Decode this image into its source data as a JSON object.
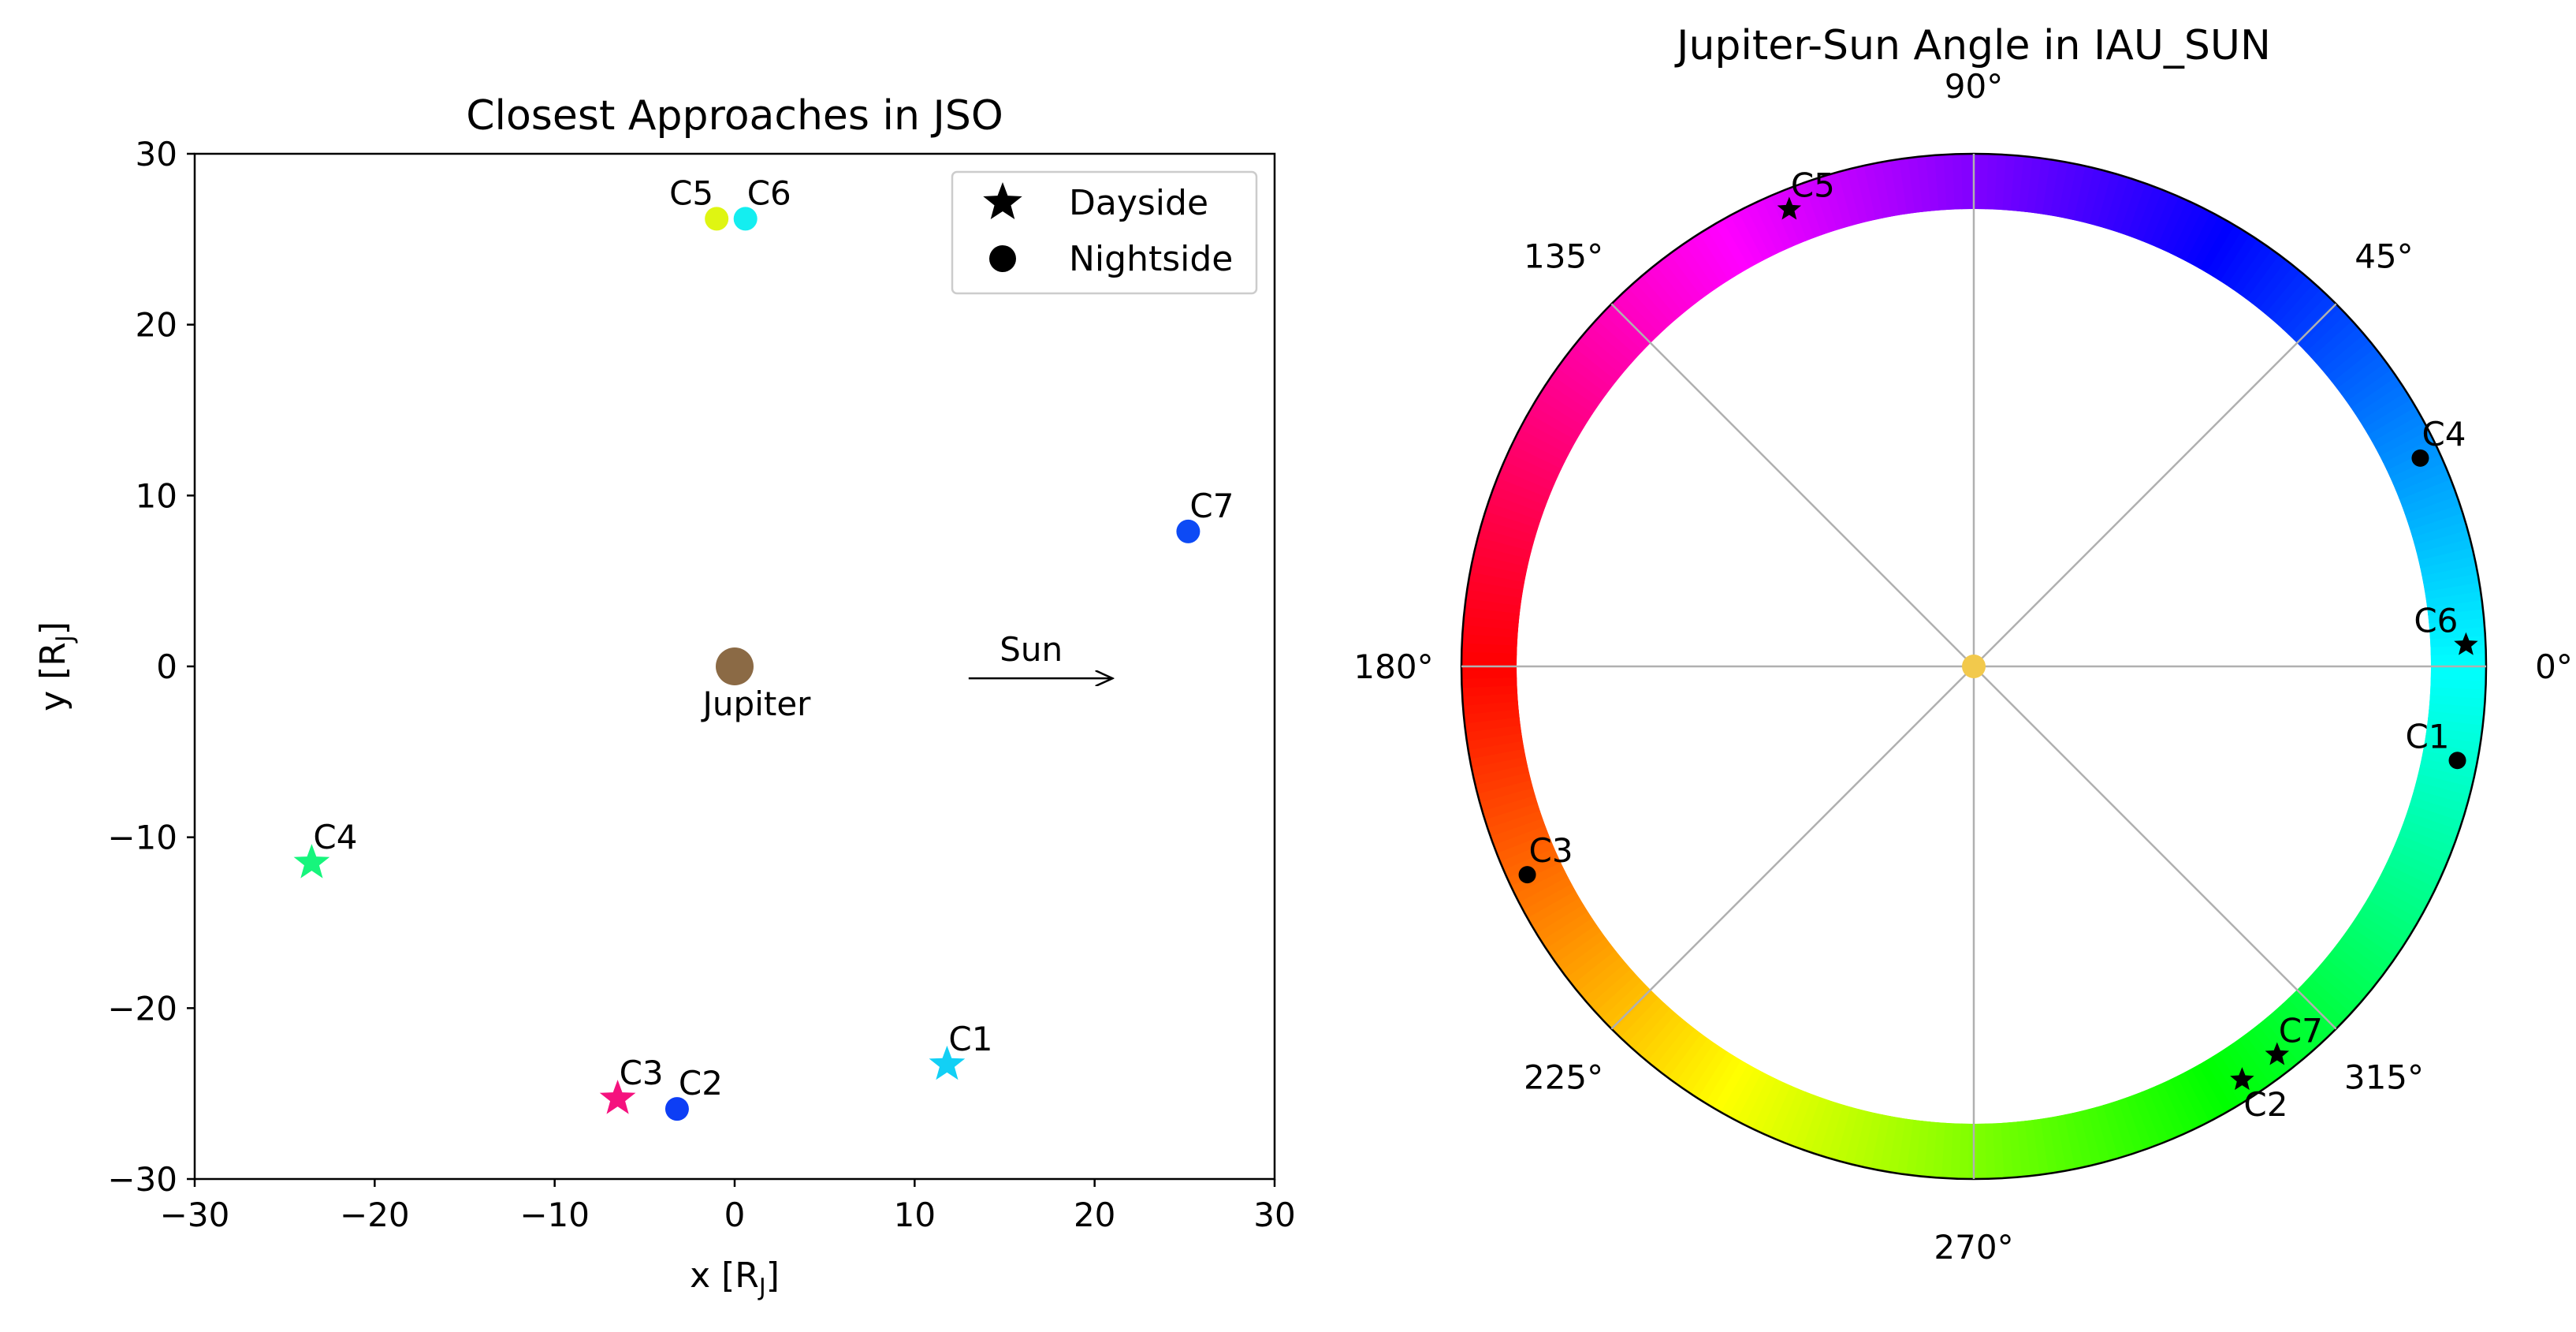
{
  "chart_data": [
    {
      "type": "scatter",
      "title": "Closest Approaches in JSO",
      "xlabel": "x [R",
      "xlabel_sub": "J",
      "xlabel_end": "]",
      "ylabel": "y [R",
      "ylabel_sub": "J",
      "ylabel_end": "]",
      "xlim": [
        -30,
        30
      ],
      "ylim": [
        -30,
        30
      ],
      "xticks": [
        -30,
        -20,
        -10,
        0,
        10,
        20,
        30
      ],
      "yticks": [
        -30,
        -20,
        -10,
        0,
        10,
        20,
        30
      ],
      "grid": false,
      "legend": {
        "placement": "top-right",
        "entries": [
          {
            "label": "Dayside",
            "marker": "star"
          },
          {
            "label": "Nightside",
            "marker": "circle"
          }
        ]
      },
      "planet": {
        "label": "Jupiter",
        "x": 0,
        "y": 0,
        "color": "#8b6a45"
      },
      "sun_annotation": {
        "label": "Sun",
        "x_start": 13,
        "x_end": 21,
        "y": -0.7
      },
      "points": [
        {
          "label": "C1",
          "x": 11.8,
          "y": -23.3,
          "marker": "star",
          "color": "#12d0f5"
        },
        {
          "label": "C2",
          "x": -3.2,
          "y": -25.9,
          "marker": "circle",
          "color": "#0d3ef5"
        },
        {
          "label": "C3",
          "x": -6.5,
          "y": -25.3,
          "marker": "star",
          "color": "#f5127e"
        },
        {
          "label": "C4",
          "x": -23.5,
          "y": -11.5,
          "marker": "star",
          "color": "#16f57c"
        },
        {
          "label": "C5",
          "x": -1.0,
          "y": 26.2,
          "marker": "circle",
          "color": "#dff512"
        },
        {
          "label": "C6",
          "x": 0.6,
          "y": 26.2,
          "marker": "circle",
          "color": "#14eef0"
        },
        {
          "label": "C7",
          "x": 25.2,
          "y": 7.9,
          "marker": "circle",
          "color": "#0d4af5"
        }
      ]
    },
    {
      "type": "polar",
      "title": "Jupiter-Sun Angle in IAU_SUN",
      "angle_ticks_deg": [
        0,
        45,
        90,
        135,
        180,
        225,
        270,
        315
      ],
      "angle_tick_labels": [
        "0°",
        "45°",
        "90°",
        "135°",
        "180°",
        "225°",
        "270°",
        "315°"
      ],
      "grid": true,
      "color_ring": "hue wheel",
      "center_marker_color": "#f2c94c",
      "points": [
        {
          "label": "C1",
          "angle_deg": 349,
          "marker": "circle"
        },
        {
          "label": "C2",
          "angle_deg": 303,
          "marker": "star"
        },
        {
          "label": "C3",
          "angle_deg": 205,
          "marker": "circle"
        },
        {
          "label": "C4",
          "angle_deg": 25,
          "marker": "circle"
        },
        {
          "label": "C5",
          "angle_deg": 112,
          "marker": "star"
        },
        {
          "label": "C6",
          "angle_deg": 2.5,
          "marker": "star"
        },
        {
          "label": "C7",
          "angle_deg": 308,
          "marker": "star"
        }
      ]
    }
  ]
}
